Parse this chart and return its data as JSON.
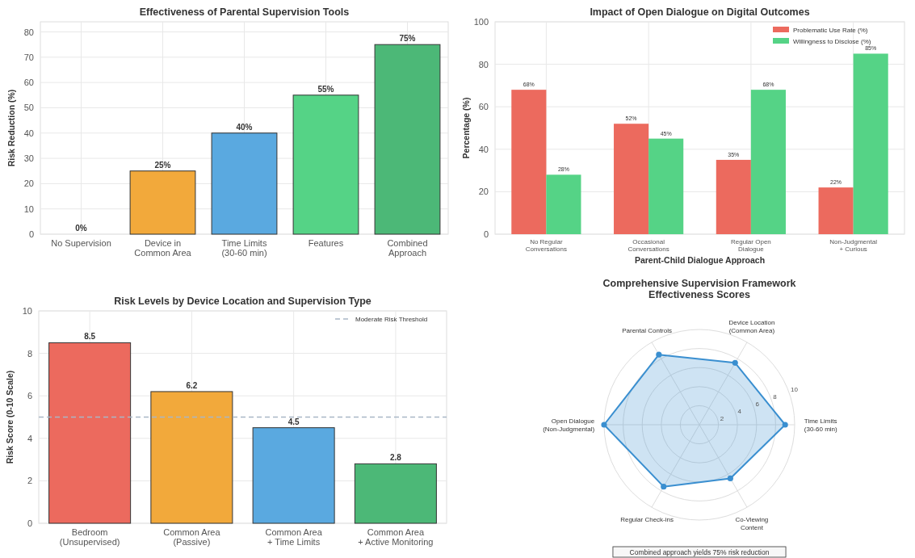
{
  "chart_data": [
    {
      "type": "bar",
      "title": "Effectiveness of Parental Supervision Tools",
      "ylabel": "Risk Reduction (%)",
      "categories": [
        "No Supervision",
        "Device in\nCommon Area",
        "Time Limits\n(30-60 min)",
        "Features",
        "Combined\nApproach"
      ],
      "values": [
        0,
        25,
        40,
        55,
        75
      ],
      "colors": [
        "#e74c3c",
        "#f2a93b",
        "#5aa9e0",
        "#55d386",
        "#4cb877"
      ],
      "value_labels": [
        "0%",
        "25%",
        "40%",
        "55%",
        "75%"
      ],
      "ylim": [
        0,
        84
      ],
      "yticks": [
        0,
        10,
        20,
        30,
        40,
        50,
        60,
        70,
        80
      ],
      "grid": true
    },
    {
      "type": "bar",
      "title": "Impact of Open Dialogue on Digital Outcomes",
      "xlabel": "Parent-Child Dialogue Approach",
      "ylabel": "Percentage (%)",
      "categories": [
        "No Regular\nConversations",
        "Occasional\nConversations",
        "Regular Open\nDialogue",
        "Non-Judgmental\n+ Curious"
      ],
      "series": [
        {
          "name": "Problematic Use Rate (%)",
          "color": "#ec6a5e",
          "values": [
            68,
            52,
            35,
            22
          ],
          "value_labels": [
            "68%",
            "52%",
            "35%",
            "22%"
          ]
        },
        {
          "name": "Willingness to Disclose (%)",
          "color": "#55d386",
          "values": [
            28,
            45,
            68,
            85
          ],
          "value_labels": [
            "28%",
            "45%",
            "68%",
            "85%"
          ]
        }
      ],
      "ylim": [
        0,
        100
      ],
      "yticks": [
        0,
        20,
        40,
        60,
        80,
        100
      ],
      "grid": true,
      "legend": "top right"
    },
    {
      "type": "bar",
      "title": "Risk Levels by Device Location and Supervision Type",
      "ylabel": "Risk Score (0-10 Scale)",
      "categories": [
        "Bedroom\n(Unsupervised)",
        "Common Area\n(Passive)",
        "Common Area\n+ Time Limits",
        "Common Area\n+ Active Monitoring"
      ],
      "values": [
        8.5,
        6.2,
        4.5,
        2.8
      ],
      "colors": [
        "#ec6a5e",
        "#f2a93b",
        "#5aa9e0",
        "#4cb877"
      ],
      "data_labels": true,
      "ref_lines": [
        {
          "axis": "y",
          "value": 5,
          "label": "Moderate Risk Threshold",
          "color": "#a9b7c6",
          "line_style": "dashed"
        }
      ],
      "ylim": [
        0,
        10
      ],
      "yticks": [
        0,
        2,
        4,
        6,
        8,
        10
      ],
      "grid": true,
      "legend": "top right"
    },
    {
      "type": "radar",
      "title": "Comprehensive Supervision Framework\nEffectiveness Scores",
      "categories": [
        "Device Location\n(Common Area)",
        "Time Limits\n(30-60 min)",
        "Co-Viewing\nContent",
        "Regular Check-ins",
        "Open Dialogue\n(Non-Judgmental)",
        "Parental Controls"
      ],
      "series": [
        {
          "color": "#3a8fd0",
          "values": [
            7.5,
            9,
            6.5,
            7.5,
            10,
            8.5
          ]
        }
      ],
      "ylim": [
        0,
        10
      ],
      "yticks": [
        2,
        4,
        6,
        8,
        10
      ],
      "grid": true,
      "marker": "circle",
      "annotations": [
        "Combined approach yields 75% risk reduction"
      ]
    }
  ]
}
